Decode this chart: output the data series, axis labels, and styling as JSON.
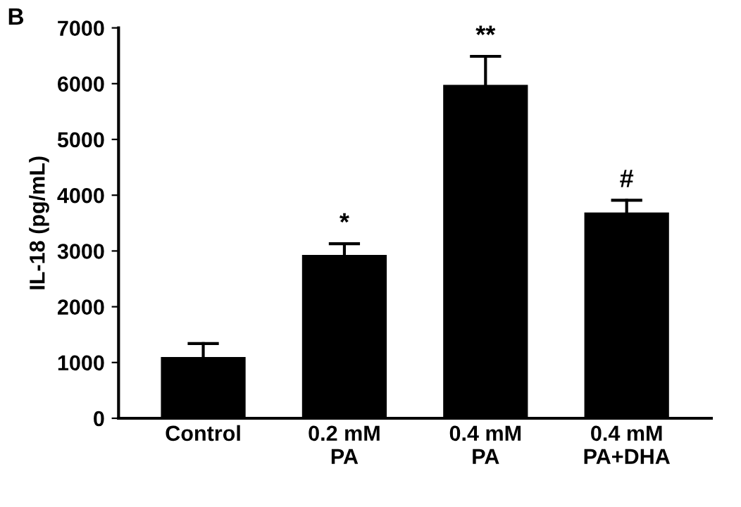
{
  "chart_data": {
    "type": "bar",
    "ylabel": "IL-18 (pg/mL)",
    "categories": [
      "Control",
      "0.2 mM\nPA",
      "0.4 mM\nPA",
      "0.4 mM\nPA+DHA"
    ],
    "values": [
      1100,
      2930,
      5980,
      3690
    ],
    "errors": [
      [
        1100,
        1340
      ],
      [
        2930,
        3130
      ],
      [
        5980,
        6490
      ],
      [
        3690,
        3910
      ]
    ],
    "color": "#000000",
    "ylim": [
      0,
      7000
    ],
    "yticks": [
      0,
      1000,
      2000,
      3000,
      4000,
      5000,
      6000,
      7000
    ],
    "grid": false,
    "annotations": [
      "B",
      {
        "text": "*",
        "x": "0.2 mM\nPA",
        "y": 3130
      },
      {
        "text": "**",
        "x": "0.4 mM\nPA",
        "y": 6490
      },
      {
        "text": "#",
        "x": "0.4 mM\nPA+DHA",
        "y": 3910
      }
    ]
  }
}
